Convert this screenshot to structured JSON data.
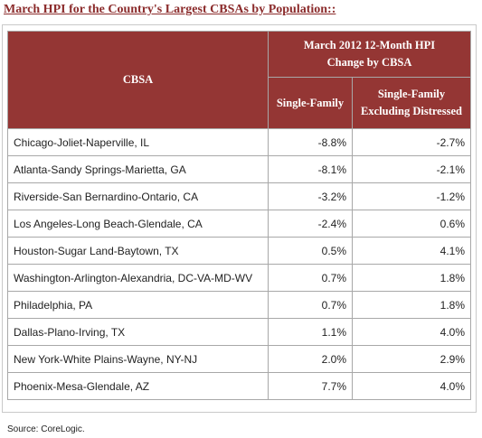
{
  "title": "March HPI for the Country's Largest CBSAs by Population::",
  "table": {
    "header": {
      "cbsa": "CBSA",
      "group_line1": "March 2012 12-Month HPI",
      "group_line2": "Change by CBSA",
      "col1": "Single-Family",
      "col2_line1": "Single-Family",
      "col2_line2": "Excluding Distressed"
    },
    "rows": [
      {
        "name": "Chicago-Joliet-Naperville, IL",
        "sf": "-8.8%",
        "sf_ex": "-2.7%"
      },
      {
        "name": "Atlanta-Sandy Springs-Marietta, GA",
        "sf": "-8.1%",
        "sf_ex": "-2.1%"
      },
      {
        "name": "Riverside-San Bernardino-Ontario, CA",
        "sf": "-3.2%",
        "sf_ex": "-1.2%"
      },
      {
        "name": "Los Angeles-Long Beach-Glendale, CA",
        "sf": "-2.4%",
        "sf_ex": "0.6%"
      },
      {
        "name": "Houston-Sugar Land-Baytown, TX",
        "sf": "0.5%",
        "sf_ex": "4.1%"
      },
      {
        "name": "Washington-Arlington-Alexandria, DC-VA-MD-WV",
        "sf": "0.7%",
        "sf_ex": "1.8%"
      },
      {
        "name": "Philadelphia, PA",
        "sf": "0.7%",
        "sf_ex": "1.8%"
      },
      {
        "name": "Dallas-Plano-Irving, TX",
        "sf": "1.1%",
        "sf_ex": "4.0%"
      },
      {
        "name": "New York-White Plains-Wayne, NY-NJ",
        "sf": "2.0%",
        "sf_ex": "2.9%"
      },
      {
        "name": "Phoenix-Mesa-Glendale, AZ",
        "sf": "7.7%",
        "sf_ex": "4.0%"
      }
    ]
  },
  "source": "Source: CoreLogic."
}
